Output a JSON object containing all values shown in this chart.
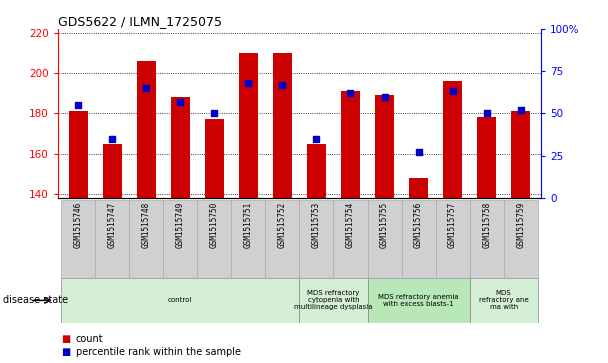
{
  "title": "GDS5622 / ILMN_1725075",
  "samples": [
    "GSM1515746",
    "GSM1515747",
    "GSM1515748",
    "GSM1515749",
    "GSM1515750",
    "GSM1515751",
    "GSM1515752",
    "GSM1515753",
    "GSM1515754",
    "GSM1515755",
    "GSM1515756",
    "GSM1515757",
    "GSM1515758",
    "GSM1515759"
  ],
  "counts": [
    181,
    165,
    206,
    188,
    177,
    210,
    210,
    165,
    191,
    189,
    148,
    196,
    178,
    181
  ],
  "percentile_ranks": [
    55,
    35,
    65,
    57,
    50,
    68,
    67,
    35,
    62,
    60,
    27,
    63,
    50,
    52
  ],
  "ylim_left": [
    138,
    222
  ],
  "ylim_right": [
    0,
    100
  ],
  "yticks_left": [
    140,
    160,
    180,
    200,
    220
  ],
  "yticks_right": [
    0,
    25,
    50,
    75,
    100
  ],
  "bar_color": "#cc0000",
  "dot_color": "#0000cc",
  "plot_bg": "#ffffff",
  "label_box_color": "#d0d0d0",
  "disease_groups": [
    {
      "label": "control",
      "start": 0,
      "end": 7,
      "color": "#d4efd4"
    },
    {
      "label": "MDS refractory\ncytopenia with\nmultilineage dysplasia",
      "start": 7,
      "end": 9,
      "color": "#d4efd4"
    },
    {
      "label": "MDS refractory anemia\nwith excess blasts-1",
      "start": 9,
      "end": 12,
      "color": "#b8e8b8"
    },
    {
      "label": "MDS\nrefractory ane\nma with",
      "start": 12,
      "end": 14,
      "color": "#d4efd4"
    }
  ],
  "legend_count": "count",
  "legend_pct": "percentile rank within the sample",
  "disease_state_label": "disease state"
}
